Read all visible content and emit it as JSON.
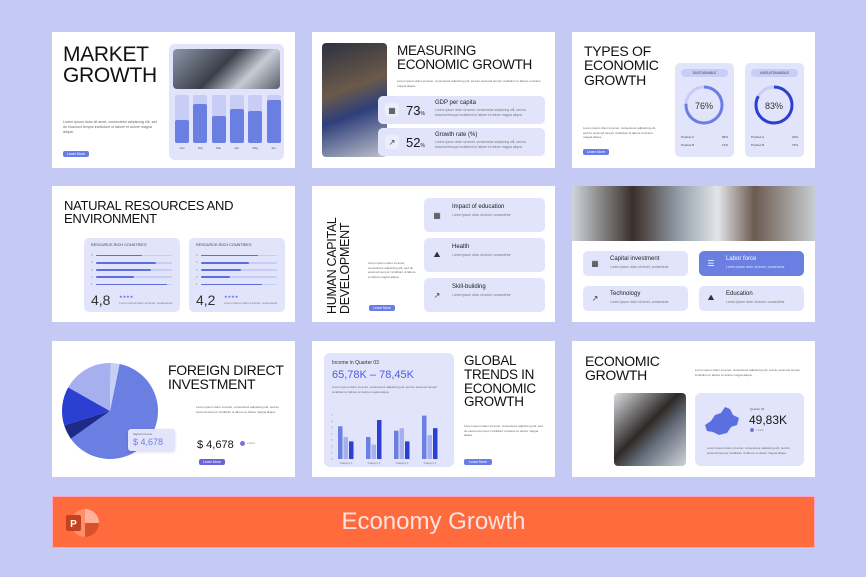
{
  "banner": {
    "title": "Economy Growth",
    "logo": "powerpoint-icon",
    "color": "#FF6B3D"
  },
  "common": {
    "learn_more": "Learn More",
    "lorem_short": "Lorem ipsum dolor sit amet, consectetur adipiscing elit, sed do eiusmod tempor incididunt ut labore et dolore magna aliqua.",
    "lorem_tiny": "Lorem ipsum dolor sit amet, consectetur"
  },
  "slides": {
    "market": {
      "title": "MARKET GROWTH",
      "bars": [
        {
          "label": "Jan",
          "value": 0.48
        },
        {
          "label": "Feb",
          "value": 0.82
        },
        {
          "label": "Mar",
          "value": 0.57
        },
        {
          "label": "Apr",
          "value": 0.71
        },
        {
          "label": "May",
          "value": 0.67
        },
        {
          "label": "Jun",
          "value": 0.89
        }
      ]
    },
    "measuring": {
      "title": "MEASURING ECONOMIC GROWTH",
      "stats": [
        {
          "value": "73",
          "unit": "%",
          "label": "GDP per capita",
          "icon": "chart-icon"
        },
        {
          "value": "52",
          "unit": "%",
          "label": "Growth rate (%)",
          "icon": "trend-icon"
        }
      ]
    },
    "types": {
      "title": "TYPES OF ECONOMIC GROWTH",
      "cards": [
        {
          "label": "SUSTAINABLE",
          "percent": 76,
          "rows": [
            {
              "k": "Product A",
              "v": "89%"
            },
            {
              "k": "Product B",
              "v": "13%"
            }
          ]
        },
        {
          "label": "UNSUSTAINABLE",
          "percent": 83,
          "rows": [
            {
              "k": "Product A",
              "v": "20%"
            },
            {
              "k": "Product B",
              "v": "76%"
            }
          ]
        }
      ]
    },
    "natural": {
      "title": "NATURAL RESOURCES AND ENVIRONMENT",
      "cards": [
        {
          "label": "RESOURCE-RICH COUNTRIES",
          "score": "4,8",
          "bars": [
            0.6,
            0.79,
            0.72,
            0.5,
            0.94
          ],
          "bar_labels": [
            "5",
            "4",
            "3",
            "2",
            "1"
          ]
        },
        {
          "label": "RESOURCE-RICH COUNTRIES",
          "score": "4,2",
          "bars": [
            0.75,
            0.63,
            0.53,
            0.38,
            0.8
          ],
          "bar_labels": [
            "5",
            "4",
            "3",
            "2",
            "1"
          ]
        }
      ],
      "stars": "★★★★"
    },
    "human": {
      "title": "HUMAN CAPITAL DEVELOPMENT",
      "items": [
        {
          "label": "Impact of education",
          "icon": "chart-icon"
        },
        {
          "label": "Health",
          "icon": "mountain-icon"
        },
        {
          "label": "Skill-building",
          "icon": "trend-icon"
        }
      ]
    },
    "factors": {
      "items": [
        {
          "label": "Capital investment",
          "icon": "chart-icon",
          "active": false
        },
        {
          "label": "Labor force",
          "icon": "list-icon",
          "active": true
        },
        {
          "label": "Technology",
          "icon": "trend-icon",
          "active": false
        },
        {
          "label": "Education",
          "icon": "mountain-icon",
          "active": false
        }
      ]
    },
    "fdi": {
      "title": "FOREIGN DIRECT INVESTMENT",
      "badge_label": "Highest income",
      "badge_value": "$ 4,678",
      "value": "$ 4,678",
      "change": "+21%",
      "pie": [
        {
          "value": 62,
          "color": "#6b7fe3"
        },
        {
          "value": 5,
          "color": "#1e2a8a"
        },
        {
          "value": 13,
          "color": "#2b3fd3"
        },
        {
          "value": 17,
          "color": "#a6b0ee"
        },
        {
          "value": 3,
          "color": "#c8cff6"
        }
      ]
    },
    "global": {
      "title": "GLOBAL TRENDS IN ECONOMIC GROWTH",
      "panel_label": "Income in Quarter 03",
      "range": "65,78K – 78,45K",
      "chart_data": {
        "type": "bar",
        "categories": [
          "Category 1",
          "Category 2",
          "Category 3",
          "Category 4"
        ],
        "series": [
          {
            "values": [
              5.2,
              3.5,
              4.5,
              6.9
            ],
            "color": "#6b7fe3"
          },
          {
            "values": [
              3.5,
              2.3,
              4.9,
              3.8
            ],
            "color": "#a6b0ee"
          },
          {
            "values": [
              2.8,
              6.2,
              2.8,
              4.9
            ],
            "color": "#2b3fd3"
          }
        ],
        "ylim": [
          0,
          7
        ],
        "yticks": [
          "0",
          "1",
          "2",
          "3",
          "4",
          "5",
          "6",
          "7"
        ]
      }
    },
    "economic": {
      "title": "ECONOMIC GROWTH",
      "quarter": "Quarter 04",
      "value": "49,83K",
      "change": "+21%"
    }
  }
}
